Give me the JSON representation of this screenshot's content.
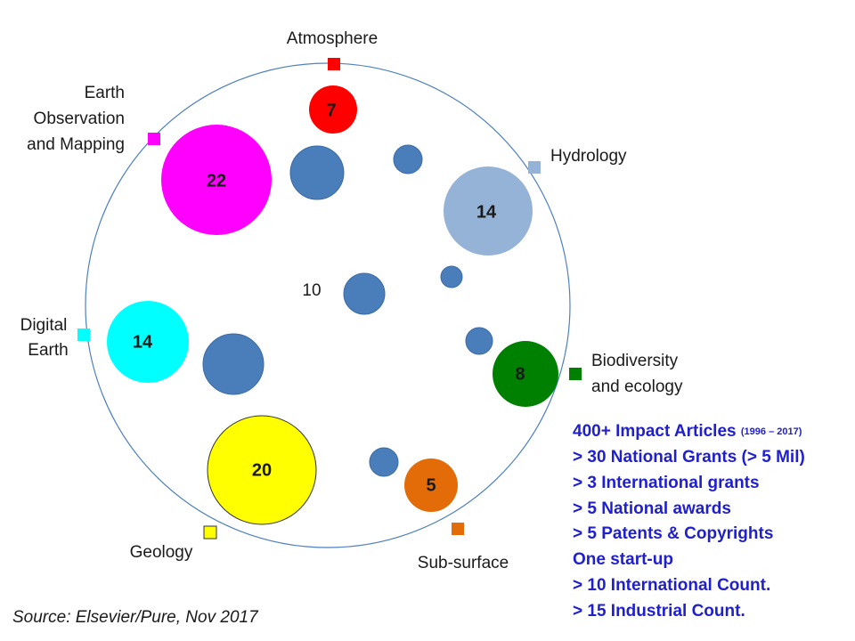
{
  "domains": [
    {
      "label": [
        "Atmosphere"
      ],
      "count": 7
    },
    {
      "label": [
        "Earth",
        "Observation",
        "and Mapping"
      ],
      "count": 22
    },
    {
      "label": [
        "Hydrology"
      ],
      "count": 14
    },
    {
      "label": [
        "Digital",
        "Earth"
      ],
      "count": 14
    },
    {
      "label": [
        "Biodiversity",
        "and ecology"
      ],
      "count": 8
    },
    {
      "label": [
        "Geology"
      ],
      "count": 20
    },
    {
      "label": [
        "Sub-surface"
      ],
      "count": 5
    }
  ],
  "center_label": 10,
  "stats": {
    "headline": "400+ Impact Articles",
    "headline_period": "(1996 – 2017)",
    "items": [
      "> 30 National Grants (> 5 Mil)",
      "> 3 International grants",
      "> 5 National awards",
      "> 5 Patents & Copyrights",
      "One start-up",
      "> 10 International Count.",
      "> 15 Industrial Count."
    ]
  },
  "source": "Source: Elsevier/Pure, Nov 2017"
}
